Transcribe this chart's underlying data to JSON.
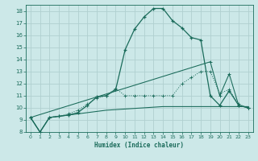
{
  "xlabel": "Humidex (Indice chaleur)",
  "bg_color": "#cce8e8",
  "grid_color": "#b0d0d0",
  "line_color": "#1a6b5a",
  "xlim": [
    -0.5,
    23.5
  ],
  "ylim": [
    8,
    18.5
  ],
  "xticks": [
    0,
    1,
    2,
    3,
    4,
    5,
    6,
    7,
    8,
    9,
    10,
    11,
    12,
    13,
    14,
    15,
    16,
    17,
    18,
    19,
    20,
    21,
    22,
    23
  ],
  "yticks": [
    8,
    9,
    10,
    11,
    12,
    13,
    14,
    15,
    16,
    17,
    18
  ],
  "curve1_x": [
    0,
    1,
    2,
    3,
    4,
    5,
    6,
    7,
    8,
    9,
    10,
    11,
    12,
    13,
    14,
    15,
    16,
    17,
    18,
    19,
    20,
    21,
    22,
    23
  ],
  "curve1_y": [
    9.2,
    8.0,
    9.2,
    9.3,
    9.4,
    9.6,
    10.2,
    10.9,
    11.0,
    11.5,
    14.8,
    16.5,
    17.5,
    18.2,
    18.2,
    17.2,
    16.6,
    15.8,
    15.6,
    11.0,
    10.2,
    11.4,
    10.2,
    10.0
  ],
  "curve2_x": [
    0,
    1,
    2,
    3,
    4,
    5,
    6,
    7,
    8,
    9,
    10,
    11,
    12,
    13,
    14,
    15,
    16,
    17,
    18,
    19,
    20,
    21,
    22,
    23
  ],
  "curve2_y": [
    9.2,
    8.0,
    9.2,
    9.3,
    9.5,
    9.8,
    10.3,
    10.8,
    11.0,
    11.6,
    11.0,
    11.0,
    11.0,
    11.0,
    11.0,
    11.0,
    12.0,
    12.5,
    13.0,
    13.0,
    11.2,
    11.5,
    10.3,
    10.0
  ],
  "curve3_x": [
    0,
    19,
    20,
    21,
    22,
    23
  ],
  "curve3_y": [
    9.2,
    13.8,
    11.0,
    12.8,
    10.2,
    10.0
  ],
  "curve4_x": [
    0,
    1,
    2,
    3,
    4,
    5,
    6,
    7,
    8,
    9,
    10,
    11,
    12,
    13,
    14,
    15,
    16,
    17,
    18,
    19,
    20,
    21,
    22,
    23
  ],
  "curve4_y": [
    9.2,
    8.0,
    9.2,
    9.3,
    9.4,
    9.5,
    9.6,
    9.7,
    9.8,
    9.85,
    9.9,
    9.95,
    10.0,
    10.05,
    10.1,
    10.1,
    10.1,
    10.1,
    10.1,
    10.1,
    10.1,
    10.1,
    10.1,
    10.1
  ],
  "marker": "+",
  "markersize": 3,
  "linewidth": 0.9
}
